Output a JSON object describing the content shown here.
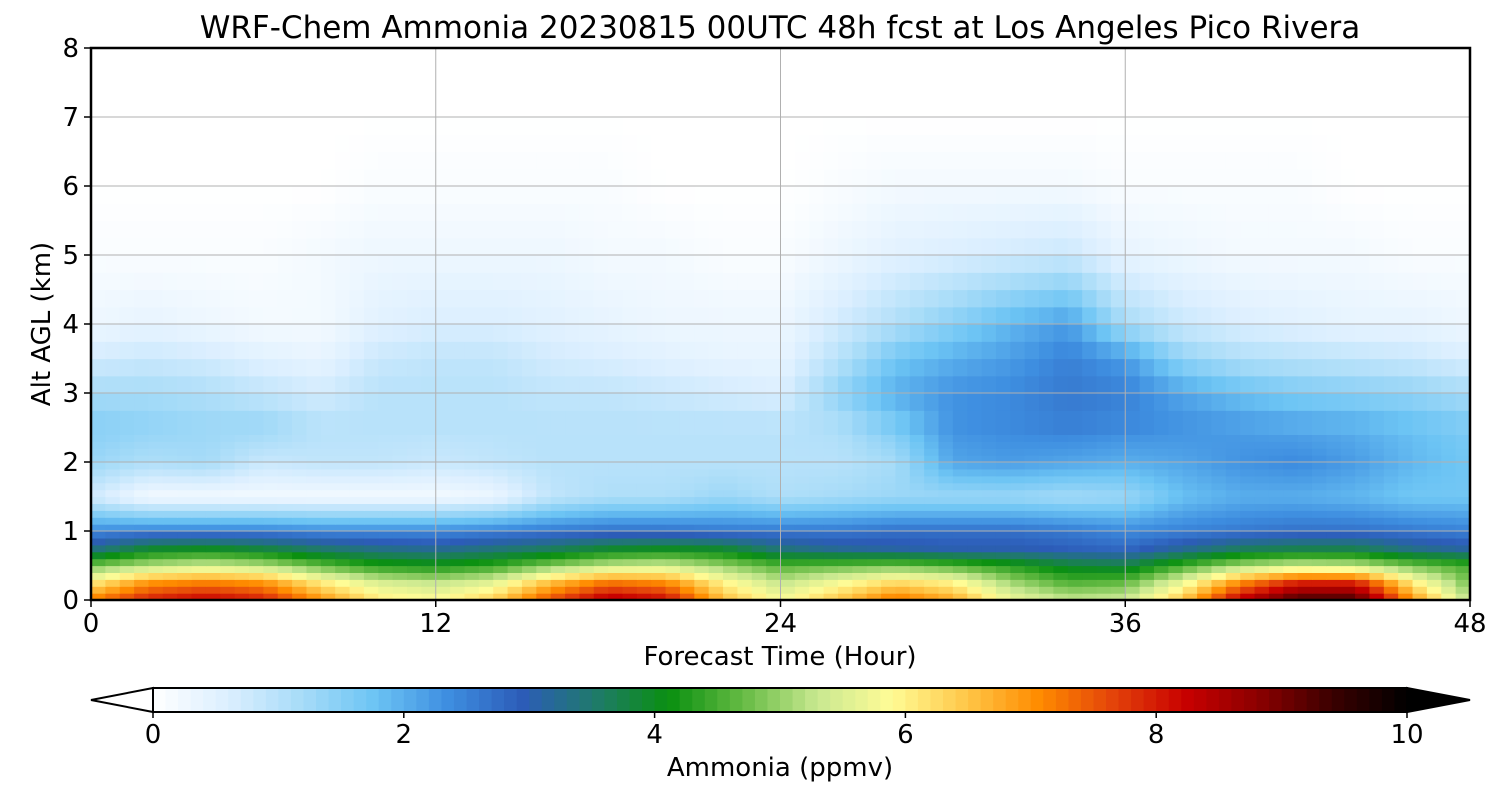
{
  "chart_data": {
    "type": "heatmap",
    "title": "WRF-Chem Ammonia  20230815 00UTC 48h fcst at Los Angeles Pico Rivera",
    "xlabel": "Forecast Time (Hour)",
    "ylabel": "Alt AGL (km)",
    "xlim": [
      0,
      48
    ],
    "ylim": [
      0,
      8
    ],
    "x_ticks": [
      0,
      12,
      24,
      36,
      48
    ],
    "y_ticks": [
      0,
      1,
      2,
      3,
      4,
      5,
      6,
      7,
      8
    ],
    "grid": true,
    "colorbar": {
      "label": "Ammonia  (ppmv)",
      "orientation": "horizontal",
      "range": [
        0,
        10
      ],
      "ticks": [
        0,
        2,
        4,
        6,
        8,
        10
      ],
      "extend": "both",
      "colors": [
        "#ffffff",
        "#dcefff",
        "#a8dcf8",
        "#6cc4f4",
        "#3e8ee0",
        "#2c5cb8",
        "#1f7a6a",
        "#0a9010",
        "#66bb44",
        "#c8e890",
        "#fffc96",
        "#ffc84a",
        "#ff8c00",
        "#e4440a",
        "#c80000",
        "#8a0000",
        "#3a0000",
        "#000000"
      ]
    },
    "x": [
      0,
      2,
      4,
      6,
      8,
      10,
      12,
      14,
      16,
      18,
      20,
      22,
      24,
      26,
      28,
      30,
      32,
      34,
      36,
      38,
      40,
      42,
      44,
      46,
      48
    ],
    "y": [
      0,
      0.25,
      0.5,
      0.75,
      1,
      1.5,
      2,
      2.5,
      3,
      3.5,
      4,
      5,
      6,
      7,
      8
    ],
    "z": [
      [
        7.2,
        8.0,
        8.3,
        8.0,
        7.0,
        6.1,
        5.9,
        6.4,
        7.6,
        8.5,
        8.2,
        6.6,
        5.8,
        6.5,
        7.3,
        6.8,
        5.7,
        5.3,
        5.4,
        6.5,
        8.4,
        9.4,
        9.4,
        7.0,
        5.2
      ],
      [
        6.1,
        7.0,
        7.2,
        7.0,
        6.1,
        5.5,
        5.3,
        5.6,
        6.6,
        7.3,
        7.1,
        6.0,
        5.3,
        5.8,
        6.3,
        6.0,
        5.1,
        4.6,
        4.7,
        5.7,
        7.1,
        8.0,
        8.0,
        6.1,
        4.8
      ],
      [
        4.8,
        5.2,
        5.4,
        5.2,
        4.7,
        4.3,
        4.2,
        4.4,
        4.9,
        5.3,
        5.4,
        5.0,
        4.6,
        4.7,
        4.8,
        4.6,
        4.3,
        3.9,
        3.8,
        4.5,
        5.1,
        5.4,
        5.3,
        4.8,
        4.5
      ],
      [
        3.3,
        3.9,
        4.0,
        3.8,
        3.5,
        3.3,
        3.2,
        3.4,
        3.6,
        3.9,
        4.0,
        3.9,
        3.4,
        3.2,
        3.1,
        3.0,
        3.0,
        2.9,
        2.8,
        3.2,
        3.6,
        3.7,
        3.7,
        3.3,
        3.1
      ],
      [
        2.4,
        2.5,
        2.5,
        2.5,
        2.4,
        2.4,
        2.4,
        2.5,
        2.6,
        2.7,
        2.7,
        2.6,
        2.6,
        2.6,
        2.7,
        2.7,
        2.7,
        2.6,
        2.4,
        2.5,
        2.6,
        2.7,
        2.7,
        2.6,
        2.5
      ],
      [
        0.7,
        0.2,
        0.2,
        0.2,
        0.2,
        0.2,
        0.2,
        0.3,
        0.9,
        1.1,
        1.1,
        1.3,
        1.1,
        1.2,
        1.3,
        1.3,
        1.3,
        1.2,
        1.3,
        1.8,
        2.0,
        2.0,
        1.9,
        1.7,
        1.7
      ],
      [
        1.3,
        1.1,
        1.2,
        0.8,
        0.9,
        0.9,
        0.8,
        0.9,
        1.0,
        1.0,
        1.0,
        1.0,
        1.0,
        1.0,
        1.2,
        2.1,
        2.2,
        2.1,
        2.0,
        2.1,
        2.3,
        2.4,
        2.2,
        1.9,
        1.7
      ],
      [
        1.5,
        1.4,
        1.3,
        1.3,
        1.0,
        1.0,
        1.0,
        1.0,
        1.0,
        1.0,
        1.0,
        1.0,
        1.0,
        1.1,
        1.6,
        2.3,
        2.4,
        2.5,
        2.4,
        2.3,
        2.2,
        2.1,
        2.0,
        1.8,
        1.6
      ],
      [
        1.2,
        1.2,
        1.1,
        0.9,
        0.7,
        1.0,
        1.0,
        1.0,
        0.9,
        0.9,
        0.8,
        0.7,
        0.6,
        1.4,
        2.0,
        2.3,
        2.4,
        2.6,
        2.5,
        2.1,
        1.8,
        1.6,
        1.5,
        1.4,
        1.2
      ],
      [
        0.7,
        0.8,
        0.7,
        0.5,
        0.4,
        0.8,
        0.9,
        0.9,
        0.7,
        0.6,
        0.5,
        0.4,
        0.4,
        1.0,
        1.7,
        2.0,
        2.2,
        2.5,
        2.2,
        1.4,
        1.1,
        1.0,
        0.9,
        0.8,
        0.6
      ],
      [
        0.3,
        0.4,
        0.3,
        0.2,
        0.2,
        0.5,
        0.6,
        0.6,
        0.5,
        0.4,
        0.3,
        0.3,
        0.3,
        0.7,
        1.1,
        1.5,
        1.9,
        2.2,
        1.2,
        0.8,
        0.6,
        0.5,
        0.4,
        0.4,
        0.3
      ],
      [
        0.1,
        0.1,
        0.1,
        0.1,
        0.2,
        0.3,
        0.3,
        0.3,
        0.3,
        0.2,
        0.2,
        0.1,
        0.1,
        0.3,
        0.5,
        0.6,
        0.7,
        0.8,
        0.4,
        0.3,
        0.2,
        0.2,
        0.2,
        0.1,
        0.1
      ],
      [
        0.0,
        0.0,
        0.0,
        0.0,
        0.0,
        0.1,
        0.1,
        0.1,
        0.1,
        0.1,
        0.0,
        0.0,
        0.0,
        0.1,
        0.2,
        0.2,
        0.2,
        0.2,
        0.1,
        0.1,
        0.1,
        0.1,
        0.0,
        0.0,
        0.0
      ],
      [
        0.0,
        0.0,
        0.0,
        0.0,
        0.0,
        0.0,
        0.0,
        0.0,
        0.0,
        0.0,
        0.0,
        0.0,
        0.0,
        0.0,
        0.0,
        0.0,
        0.0,
        0.0,
        0.0,
        0.0,
        0.0,
        0.0,
        0.0,
        0.0,
        0.0
      ],
      [
        0.0,
        0.0,
        0.0,
        0.0,
        0.0,
        0.0,
        0.0,
        0.0,
        0.0,
        0.0,
        0.0,
        0.0,
        0.0,
        0.0,
        0.0,
        0.0,
        0.0,
        0.0,
        0.0,
        0.0,
        0.0,
        0.0,
        0.0,
        0.0,
        0.0
      ]
    ]
  }
}
